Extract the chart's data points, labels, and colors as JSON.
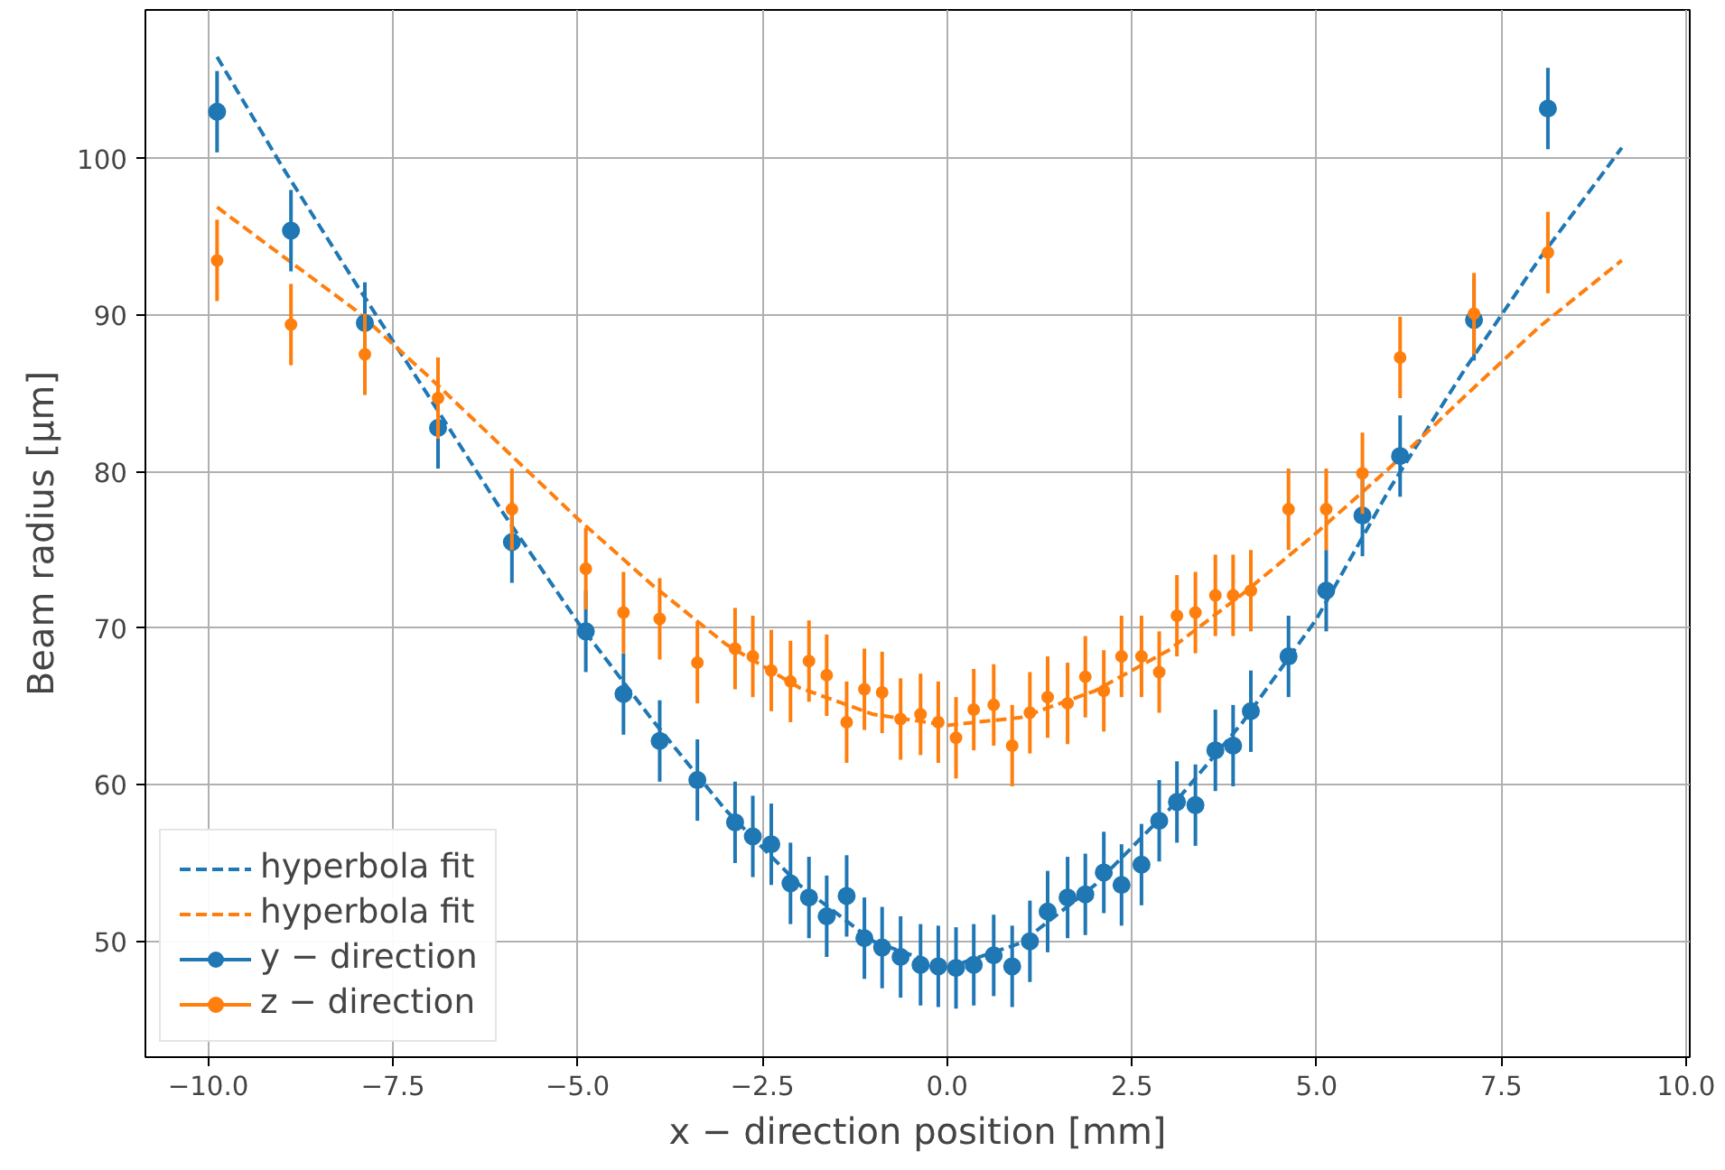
{
  "chart_data": {
    "type": "scatter",
    "xlabel": "x − direction position [mm]",
    "ylabel": "Beam radius [μm]",
    "xlim": [
      -10.85,
      10.05
    ],
    "ylim": [
      42.6,
      109.5
    ],
    "xticks": [
      {
        "value": -10,
        "label": "−10.0"
      },
      {
        "value": -7.5,
        "label": "−7.5"
      },
      {
        "value": -5,
        "label": "−5.0"
      },
      {
        "value": -2.5,
        "label": "−2.5"
      },
      {
        "value": 0,
        "label": "0.0"
      },
      {
        "value": 2.5,
        "label": "2.5"
      },
      {
        "value": 5,
        "label": "5.0"
      },
      {
        "value": 7.5,
        "label": "7.5"
      },
      {
        "value": 10,
        "label": "10.0"
      }
    ],
    "yticks": [
      50,
      60,
      70,
      80,
      90,
      100
    ],
    "grid": true,
    "legend": "bottom left",
    "series": [
      {
        "name": "hyperbola fit",
        "type": "line",
        "line_style": "dashed",
        "marker": "none",
        "color": "#1f77b4",
        "x": [
          -9.88,
          -9,
          -8,
          -7,
          -6,
          -5,
          -4,
          -3,
          -2,
          -1,
          0,
          1,
          2,
          3,
          4,
          5,
          6,
          7,
          8,
          9.13
        ],
        "values": [
          106.5,
          99.5,
          92.0,
          84.7,
          77.3,
          70.4,
          64.2,
          58.4,
          53.6,
          50.0,
          48.3,
          49.9,
          53.6,
          58.4,
          64.0,
          70.6,
          79.0,
          86.5,
          93.5,
          100.7
        ]
      },
      {
        "name": "hyperbola fit",
        "type": "line",
        "line_style": "dashed",
        "marker": "none",
        "color": "#ff7f0e",
        "x": [
          -9.88,
          -9,
          -8,
          -7,
          -6,
          -5,
          -4,
          -3,
          -2,
          -1,
          0,
          1,
          2,
          3,
          4,
          5,
          6,
          7,
          8,
          9.13
        ],
        "values": [
          96.9,
          93.8,
          90.3,
          86.0,
          81.5,
          77.0,
          72.8,
          69.0,
          66.2,
          64.5,
          63.8,
          64.3,
          66.0,
          68.6,
          72.2,
          76.1,
          80.3,
          84.8,
          89.2,
          93.5
        ]
      },
      {
        "name": "y − direction",
        "marker": "circle",
        "color": "#1f77b4",
        "x": [
          -9.88,
          -8.88,
          -7.88,
          -6.89,
          -5.89,
          -4.89,
          -4.38,
          -3.89,
          -3.38,
          -2.87,
          -2.63,
          -2.38,
          -2.12,
          -1.87,
          -1.63,
          -1.36,
          -1.12,
          -0.88,
          -0.63,
          -0.36,
          -0.12,
          0.12,
          0.36,
          0.63,
          0.88,
          1.12,
          1.36,
          1.63,
          1.87,
          2.12,
          2.36,
          2.63,
          2.87,
          3.11,
          3.36,
          3.63,
          3.87,
          4.11,
          4.62,
          5.13,
          5.62,
          6.13,
          7.13,
          8.13
        ],
        "values": [
          103.0,
          95.4,
          89.5,
          82.8,
          75.5,
          69.8,
          65.8,
          62.8,
          60.3,
          57.6,
          56.7,
          56.2,
          53.7,
          52.8,
          51.6,
          52.9,
          50.2,
          49.6,
          49.0,
          48.5,
          48.4,
          48.3,
          48.5,
          49.1,
          48.4,
          50.0,
          51.9,
          52.8,
          53.0,
          54.4,
          53.6,
          54.9,
          57.7,
          58.9,
          58.7,
          62.2,
          62.5,
          64.7,
          68.2,
          72.4,
          77.2,
          81.0,
          89.7,
          103.2
        ],
        "errors": [
          2.6,
          2.6,
          2.6,
          2.6,
          2.6,
          2.6,
          2.6,
          2.6,
          2.6,
          2.6,
          2.6,
          2.6,
          2.6,
          2.6,
          2.6,
          2.6,
          2.6,
          2.6,
          2.6,
          2.6,
          2.6,
          2.6,
          2.6,
          2.6,
          2.6,
          2.6,
          2.6,
          2.6,
          2.6,
          2.6,
          2.6,
          2.6,
          2.6,
          2.6,
          2.6,
          2.6,
          2.6,
          2.6,
          2.6,
          2.6,
          2.6,
          2.6,
          2.6,
          2.6
        ]
      },
      {
        "name": "z − direction",
        "marker": "circle",
        "color": "#ff7f0e",
        "x": [
          -9.88,
          -8.88,
          -7.88,
          -6.89,
          -5.89,
          -4.89,
          -4.38,
          -3.89,
          -3.38,
          -2.87,
          -2.63,
          -2.38,
          -2.12,
          -1.87,
          -1.63,
          -1.36,
          -1.12,
          -0.88,
          -0.63,
          -0.36,
          -0.12,
          0.12,
          0.36,
          0.63,
          0.88,
          1.12,
          1.36,
          1.63,
          1.87,
          2.12,
          2.36,
          2.63,
          2.87,
          3.11,
          3.36,
          3.63,
          3.87,
          4.11,
          4.62,
          5.13,
          5.62,
          6.13,
          7.13,
          8.13
        ],
        "values": [
          93.5,
          89.4,
          87.5,
          84.7,
          77.6,
          73.8,
          71.0,
          70.6,
          67.8,
          68.7,
          68.2,
          67.3,
          66.6,
          67.9,
          67.0,
          64.0,
          66.1,
          65.9,
          64.2,
          64.5,
          64.0,
          63.0,
          64.8,
          65.1,
          62.5,
          64.6,
          65.6,
          65.2,
          66.9,
          66.0,
          68.2,
          68.2,
          67.2,
          70.8,
          71.0,
          72.1,
          72.1,
          72.4,
          77.6,
          77.6,
          79.9,
          87.3,
          90.1,
          94.0
        ],
        "errors": [
          2.6,
          2.6,
          2.6,
          2.6,
          2.6,
          2.6,
          2.6,
          2.6,
          2.6,
          2.6,
          2.6,
          2.6,
          2.6,
          2.6,
          2.6,
          2.6,
          2.6,
          2.6,
          2.6,
          2.6,
          2.6,
          2.6,
          2.6,
          2.6,
          2.6,
          2.6,
          2.6,
          2.6,
          2.6,
          2.6,
          2.6,
          2.6,
          2.6,
          2.6,
          2.6,
          2.6,
          2.6,
          2.6,
          2.6,
          2.6,
          2.6,
          2.6,
          2.6,
          2.6
        ]
      }
    ]
  }
}
